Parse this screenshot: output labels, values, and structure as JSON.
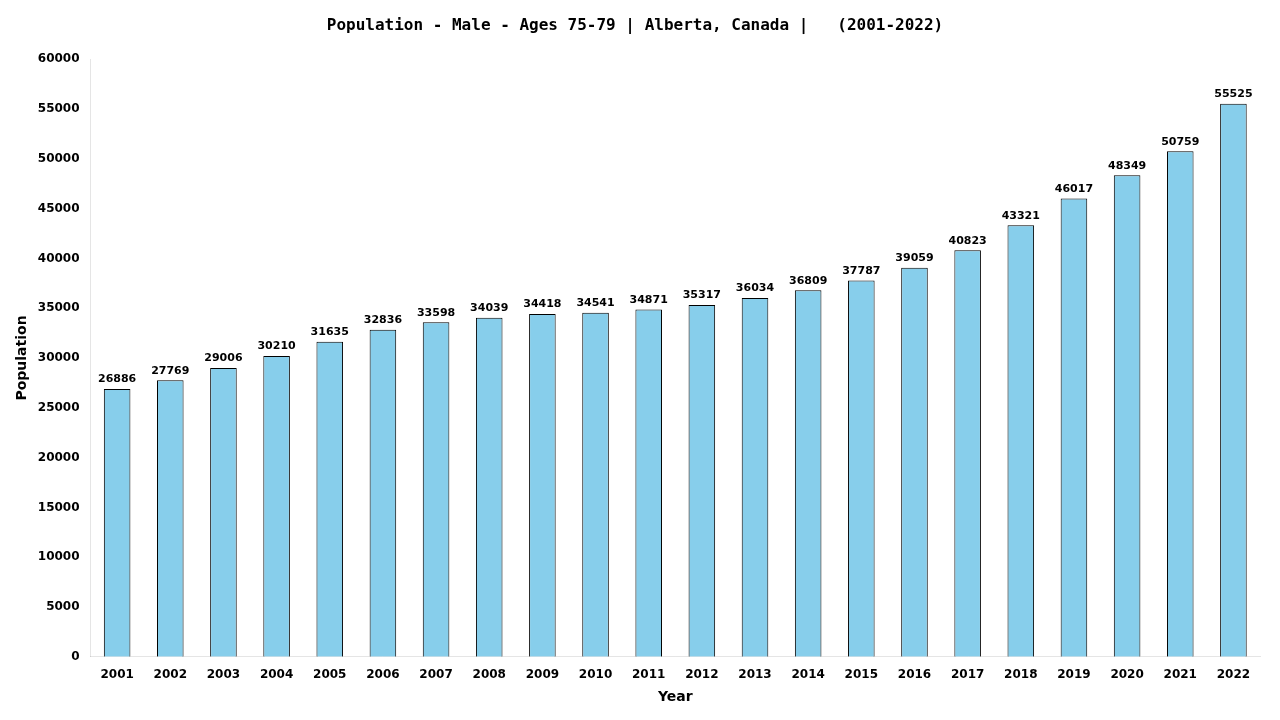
{
  "chart_data": {
    "type": "bar",
    "title": "Population - Male - Ages 75-79 | Alberta, Canada |   (2001-2022)",
    "xlabel": "Year",
    "ylabel": "Population",
    "categories": [
      "2001",
      "2002",
      "2003",
      "2004",
      "2005",
      "2006",
      "2007",
      "2008",
      "2009",
      "2010",
      "2011",
      "2012",
      "2013",
      "2014",
      "2015",
      "2016",
      "2017",
      "2018",
      "2019",
      "2020",
      "2021",
      "2022"
    ],
    "values": [
      26886,
      27769,
      29006,
      30210,
      31635,
      32836,
      33598,
      34039,
      34418,
      34541,
      34871,
      35317,
      36034,
      36809,
      37787,
      39059,
      40823,
      43321,
      46017,
      48349,
      50759,
      55525
    ],
    "color": "#87CEEB",
    "ylim": [
      0,
      60000
    ],
    "yticks": [
      0,
      5000,
      10000,
      15000,
      20000,
      25000,
      30000,
      35000,
      40000,
      45000,
      50000,
      55000,
      60000
    ],
    "grid": false,
    "data_labels": true
  }
}
